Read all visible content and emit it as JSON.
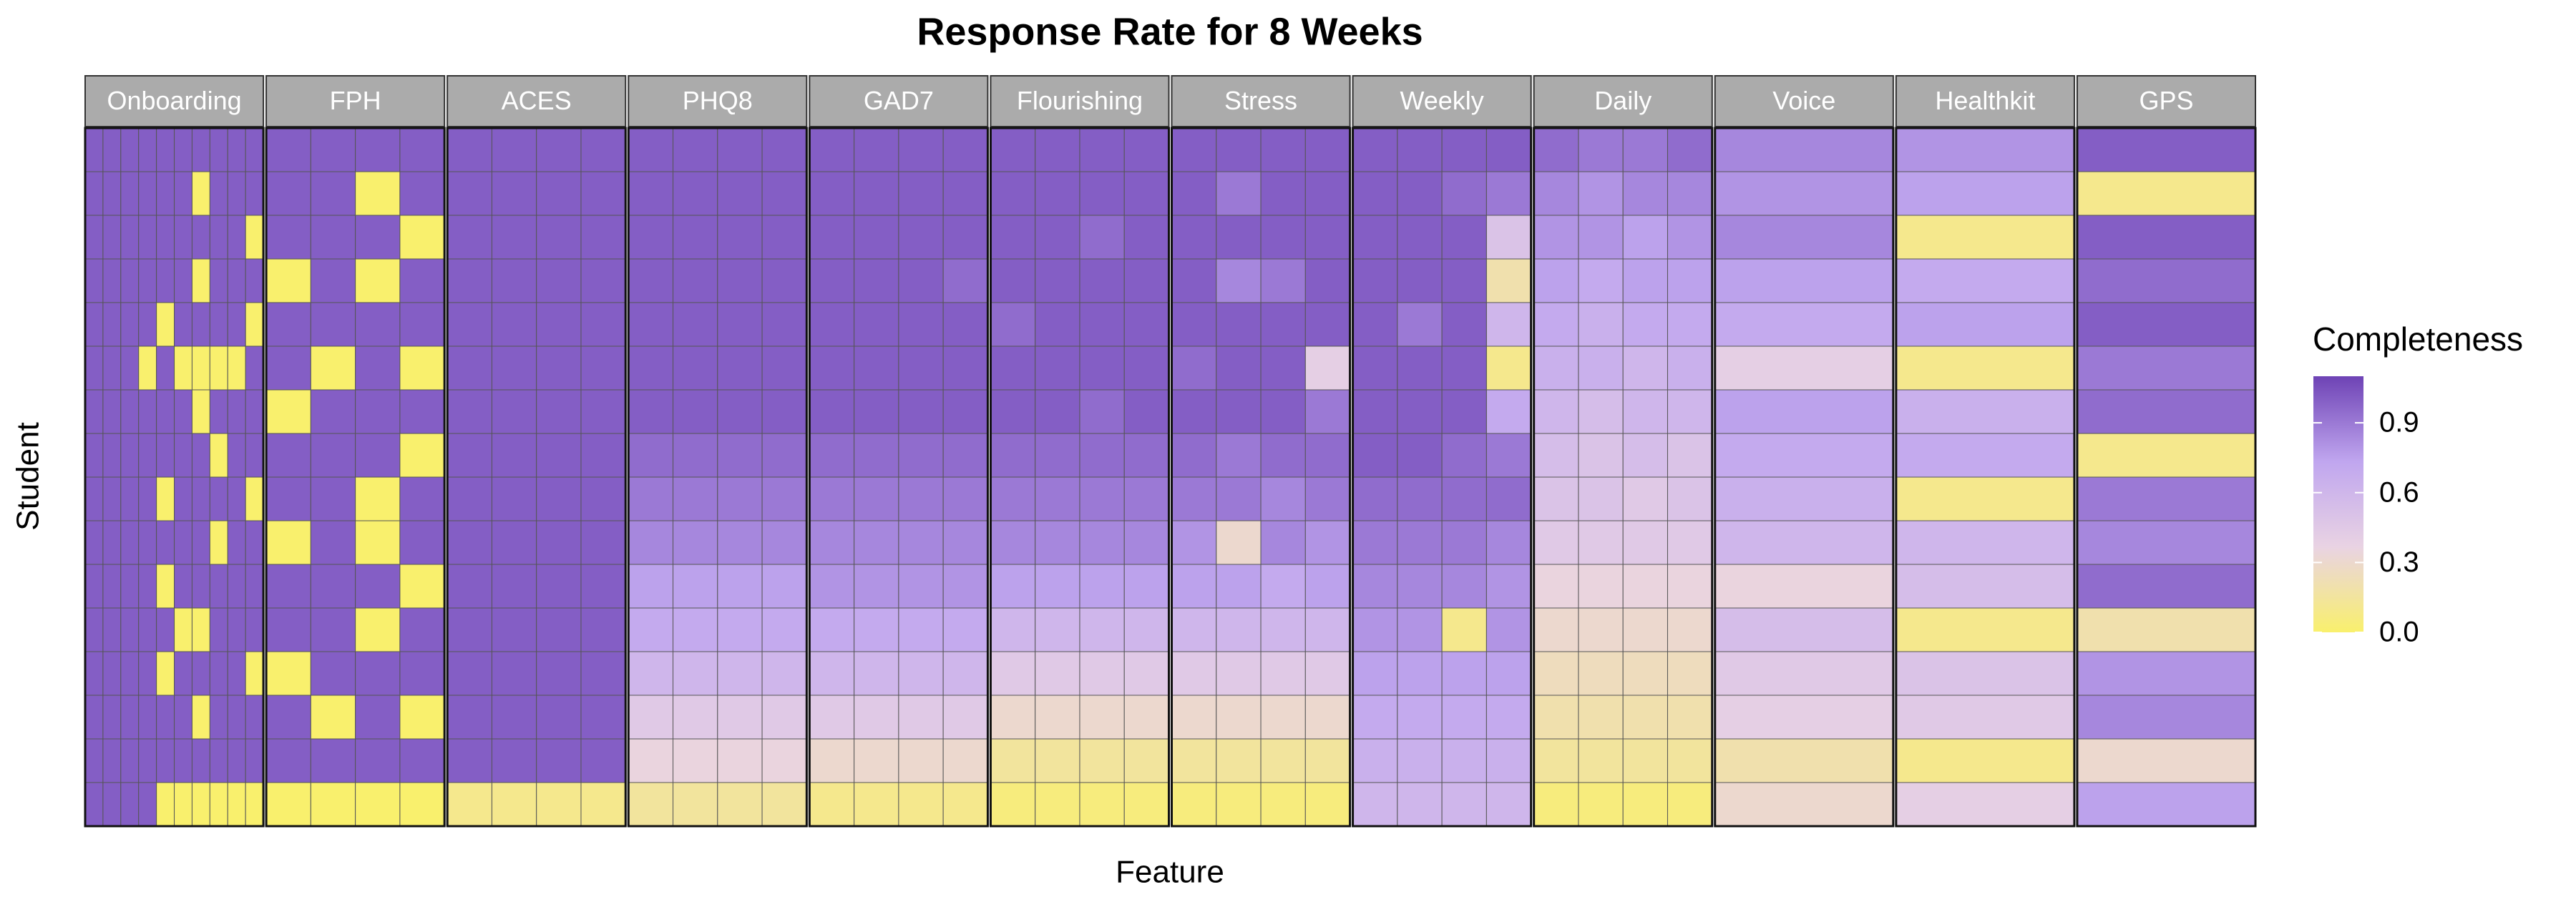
{
  "chart_data": {
    "type": "heatmap",
    "title": "Response Rate for 8 Weeks",
    "x_label": "Feature",
    "y_label": "Student",
    "legend_title": "Completeness",
    "clim": [
      0,
      1.1
    ],
    "colorscale": [
      "#f9f06d",
      "#e9d3e3",
      "#c0a6ef",
      "#6e43b5"
    ],
    "cticks": [
      {
        "value": 0,
        "label": "0.0"
      },
      0.3,
      0.6,
      0.9
    ],
    "panels": [
      {
        "name": "Onboarding",
        "values": [
          [
            1,
            1,
            1,
            1,
            1,
            1,
            1,
            1,
            1,
            1
          ],
          [
            1,
            1,
            1,
            1,
            1,
            1,
            0,
            1,
            1,
            1
          ],
          [
            1,
            1,
            1,
            1,
            1,
            1,
            1,
            1,
            1,
            0
          ],
          [
            1,
            1,
            1,
            1,
            1,
            1,
            0,
            1,
            1,
            1
          ],
          [
            1,
            1,
            1,
            1,
            0,
            1,
            1,
            1,
            1,
            0
          ],
          [
            1,
            1,
            1,
            0,
            1,
            0,
            0,
            0,
            0,
            1
          ],
          [
            1,
            1,
            1,
            1,
            1,
            1,
            0,
            1,
            1,
            1
          ],
          [
            1,
            1,
            1,
            1,
            1,
            1,
            1,
            0,
            1,
            1
          ],
          [
            1,
            1,
            1,
            1,
            0,
            1,
            1,
            1,
            1,
            0
          ],
          [
            1,
            1,
            1,
            1,
            1,
            1,
            1,
            0,
            1,
            1
          ],
          [
            1,
            1,
            1,
            1,
            0,
            1,
            1,
            1,
            1,
            1
          ],
          [
            1,
            1,
            1,
            1,
            1,
            0,
            0,
            1,
            1,
            1
          ],
          [
            1,
            1,
            1,
            1,
            0,
            1,
            1,
            1,
            1,
            0
          ],
          [
            1,
            1,
            1,
            1,
            1,
            1,
            0,
            1,
            1,
            1
          ],
          [
            1,
            1,
            1,
            1,
            1,
            1,
            1,
            1,
            1,
            1
          ],
          [
            1,
            1,
            1,
            1,
            0,
            0,
            0,
            0,
            0,
            0
          ]
        ]
      },
      {
        "name": "FPH",
        "values": [
          [
            1,
            1,
            1,
            1
          ],
          [
            1,
            1,
            0,
            1
          ],
          [
            1,
            1,
            1,
            0
          ],
          [
            0,
            1,
            0,
            1
          ],
          [
            1,
            1,
            1,
            1
          ],
          [
            1,
            0,
            1,
            0
          ],
          [
            0,
            1,
            1,
            1
          ],
          [
            1,
            1,
            1,
            0
          ],
          [
            1,
            1,
            0,
            1
          ],
          [
            0,
            1,
            0,
            1
          ],
          [
            1,
            1,
            1,
            0
          ],
          [
            1,
            1,
            0,
            1
          ],
          [
            0,
            1,
            1,
            1
          ],
          [
            1,
            0,
            1,
            0
          ],
          [
            1,
            1,
            1,
            1
          ],
          [
            0,
            0,
            0,
            0
          ]
        ]
      },
      {
        "name": "ACES",
        "values": [
          [
            1,
            1,
            1,
            1
          ],
          [
            1,
            1,
            1,
            1
          ],
          [
            1,
            1,
            1,
            1
          ],
          [
            1,
            1,
            1,
            1
          ],
          [
            1,
            1,
            1,
            1
          ],
          [
            1,
            1,
            1,
            1
          ],
          [
            1,
            1,
            1,
            1
          ],
          [
            1,
            1,
            1,
            1
          ],
          [
            1,
            1,
            1,
            1
          ],
          [
            1,
            1,
            1,
            1
          ],
          [
            1,
            1,
            1,
            1
          ],
          [
            1,
            1,
            1,
            1
          ],
          [
            1,
            1,
            1,
            1
          ],
          [
            1,
            1,
            1,
            1
          ],
          [
            1,
            1,
            1,
            1
          ],
          [
            0.1,
            0.1,
            0.1,
            0.1
          ]
        ]
      },
      {
        "name": "PHQ8",
        "values": [
          [
            1,
            1,
            1,
            1
          ],
          [
            1,
            1,
            1,
            1
          ],
          [
            1,
            1,
            1,
            1
          ],
          [
            1,
            1,
            1,
            1
          ],
          [
            1,
            1,
            1,
            1
          ],
          [
            1,
            1,
            1,
            1
          ],
          [
            1,
            1,
            1,
            1
          ],
          [
            0.95,
            0.95,
            0.95,
            0.95
          ],
          [
            0.9,
            0.9,
            0.9,
            0.9
          ],
          [
            0.85,
            0.85,
            0.85,
            0.85
          ],
          [
            0.75,
            0.75,
            0.75,
            0.75
          ],
          [
            0.7,
            0.7,
            0.7,
            0.7
          ],
          [
            0.6,
            0.6,
            0.6,
            0.6
          ],
          [
            0.45,
            0.45,
            0.45,
            0.45
          ],
          [
            0.35,
            0.35,
            0.35,
            0.35
          ],
          [
            0.15,
            0.15,
            0.15,
            0.15
          ]
        ]
      },
      {
        "name": "GAD7",
        "values": [
          [
            1,
            1,
            1,
            1
          ],
          [
            1,
            1,
            1,
            1
          ],
          [
            1,
            1,
            1,
            1
          ],
          [
            1,
            1,
            1,
            0.95
          ],
          [
            1,
            1,
            1,
            1
          ],
          [
            1,
            1,
            1,
            1
          ],
          [
            1,
            1,
            1,
            1
          ],
          [
            0.95,
            0.95,
            0.95,
            0.95
          ],
          [
            0.9,
            0.9,
            0.9,
            0.9
          ],
          [
            0.85,
            0.85,
            0.85,
            0.85
          ],
          [
            0.8,
            0.8,
            0.8,
            0.8
          ],
          [
            0.7,
            0.7,
            0.7,
            0.7
          ],
          [
            0.6,
            0.6,
            0.6,
            0.6
          ],
          [
            0.45,
            0.45,
            0.45,
            0.45
          ],
          [
            0.3,
            0.3,
            0.3,
            0.3
          ],
          [
            0.1,
            0.1,
            0.1,
            0.1
          ]
        ]
      },
      {
        "name": "Flourishing",
        "values": [
          [
            1,
            1,
            1,
            1
          ],
          [
            1,
            1,
            1,
            1
          ],
          [
            1,
            1,
            0.95,
            1
          ],
          [
            1,
            1,
            1,
            1
          ],
          [
            0.95,
            1,
            1,
            1
          ],
          [
            1,
            1,
            1,
            1
          ],
          [
            1,
            1,
            0.95,
            1
          ],
          [
            0.95,
            0.95,
            0.95,
            0.95
          ],
          [
            0.9,
            0.9,
            0.9,
            0.9
          ],
          [
            0.85,
            0.85,
            0.85,
            0.85
          ],
          [
            0.75,
            0.75,
            0.75,
            0.75
          ],
          [
            0.6,
            0.6,
            0.6,
            0.6
          ],
          [
            0.45,
            0.45,
            0.45,
            0.45
          ],
          [
            0.3,
            0.3,
            0.3,
            0.3
          ],
          [
            0.15,
            0.15,
            0.15,
            0.15
          ],
          [
            0.05,
            0.05,
            0.05,
            0.05
          ]
        ]
      },
      {
        "name": "Stress",
        "values": [
          [
            1,
            1,
            1,
            1
          ],
          [
            1,
            0.9,
            1,
            1
          ],
          [
            1,
            1,
            1,
            1
          ],
          [
            1,
            0.85,
            0.9,
            1
          ],
          [
            1,
            1,
            1,
            1
          ],
          [
            0.95,
            1,
            1,
            0.4
          ],
          [
            1,
            1,
            1,
            0.9
          ],
          [
            0.95,
            0.9,
            0.95,
            0.95
          ],
          [
            0.9,
            0.9,
            0.85,
            0.9
          ],
          [
            0.8,
            0.3,
            0.85,
            0.8
          ],
          [
            0.75,
            0.75,
            0.7,
            0.75
          ],
          [
            0.6,
            0.6,
            0.6,
            0.6
          ],
          [
            0.45,
            0.45,
            0.45,
            0.45
          ],
          [
            0.3,
            0.3,
            0.3,
            0.3
          ],
          [
            0.15,
            0.15,
            0.15,
            0.15
          ],
          [
            0.05,
            0.05,
            0.05,
            0.05
          ]
        ]
      },
      {
        "name": "Weekly",
        "values": [
          [
            1,
            1,
            1,
            1
          ],
          [
            1,
            1,
            0.95,
            0.9
          ],
          [
            1,
            1,
            1,
            0.5
          ],
          [
            1,
            1,
            1,
            0.2
          ],
          [
            1,
            0.9,
            1,
            0.6
          ],
          [
            1,
            1,
            1,
            0.1
          ],
          [
            1,
            1,
            1,
            0.7
          ],
          [
            1,
            1,
            0.95,
            0.9
          ],
          [
            0.95,
            0.95,
            0.95,
            0.95
          ],
          [
            0.9,
            0.9,
            0.9,
            0.85
          ],
          [
            0.85,
            0.85,
            0.85,
            0.8
          ],
          [
            0.8,
            0.8,
            0.1,
            0.8
          ],
          [
            0.75,
            0.75,
            0.75,
            0.75
          ],
          [
            0.7,
            0.7,
            0.7,
            0.7
          ],
          [
            0.65,
            0.65,
            0.65,
            0.65
          ],
          [
            0.6,
            0.6,
            0.6,
            0.6
          ]
        ]
      },
      {
        "name": "Daily",
        "values": [
          [
            0.95,
            0.9,
            0.9,
            0.95
          ],
          [
            0.85,
            0.8,
            0.85,
            0.85
          ],
          [
            0.8,
            0.8,
            0.75,
            0.8
          ],
          [
            0.75,
            0.7,
            0.75,
            0.75
          ],
          [
            0.7,
            0.65,
            0.7,
            0.7
          ],
          [
            0.65,
            0.65,
            0.6,
            0.65
          ],
          [
            0.6,
            0.55,
            0.6,
            0.6
          ],
          [
            0.55,
            0.5,
            0.55,
            0.5
          ],
          [
            0.5,
            0.5,
            0.45,
            0.5
          ],
          [
            0.45,
            0.45,
            0.45,
            0.45
          ],
          [
            0.35,
            0.35,
            0.35,
            0.35
          ],
          [
            0.3,
            0.3,
            0.3,
            0.3
          ],
          [
            0.25,
            0.25,
            0.25,
            0.25
          ],
          [
            0.2,
            0.2,
            0.2,
            0.2
          ],
          [
            0.15,
            0.15,
            0.15,
            0.15
          ],
          [
            0.05,
            0.05,
            0.05,
            0.05
          ]
        ]
      },
      {
        "name": "Voice",
        "values": [
          [
            0.85
          ],
          [
            0.8
          ],
          [
            0.85
          ],
          [
            0.75
          ],
          [
            0.7
          ],
          [
            0.4
          ],
          [
            0.75
          ],
          [
            0.7
          ],
          [
            0.65
          ],
          [
            0.6
          ],
          [
            0.35
          ],
          [
            0.55
          ],
          [
            0.45
          ],
          [
            0.4
          ],
          [
            0.2
          ],
          [
            0.3
          ]
        ]
      },
      {
        "name": "Healthkit",
        "values": [
          [
            0.8
          ],
          [
            0.75
          ],
          [
            0.1
          ],
          [
            0.7
          ],
          [
            0.75
          ],
          [
            0.1
          ],
          [
            0.65
          ],
          [
            0.7
          ],
          [
            0.1
          ],
          [
            0.6
          ],
          [
            0.55
          ],
          [
            0.1
          ],
          [
            0.5
          ],
          [
            0.45
          ],
          [
            0.1
          ],
          [
            0.4
          ]
        ]
      },
      {
        "name": "GPS",
        "values": [
          [
            1
          ],
          [
            0.1
          ],
          [
            1
          ],
          [
            0.95
          ],
          [
            1
          ],
          [
            0.9
          ],
          [
            0.95
          ],
          [
            0.1
          ],
          [
            0.9
          ],
          [
            0.85
          ],
          [
            0.95
          ],
          [
            0.2
          ],
          [
            0.8
          ],
          [
            0.85
          ],
          [
            0.3
          ],
          [
            0.75
          ]
        ]
      }
    ]
  }
}
